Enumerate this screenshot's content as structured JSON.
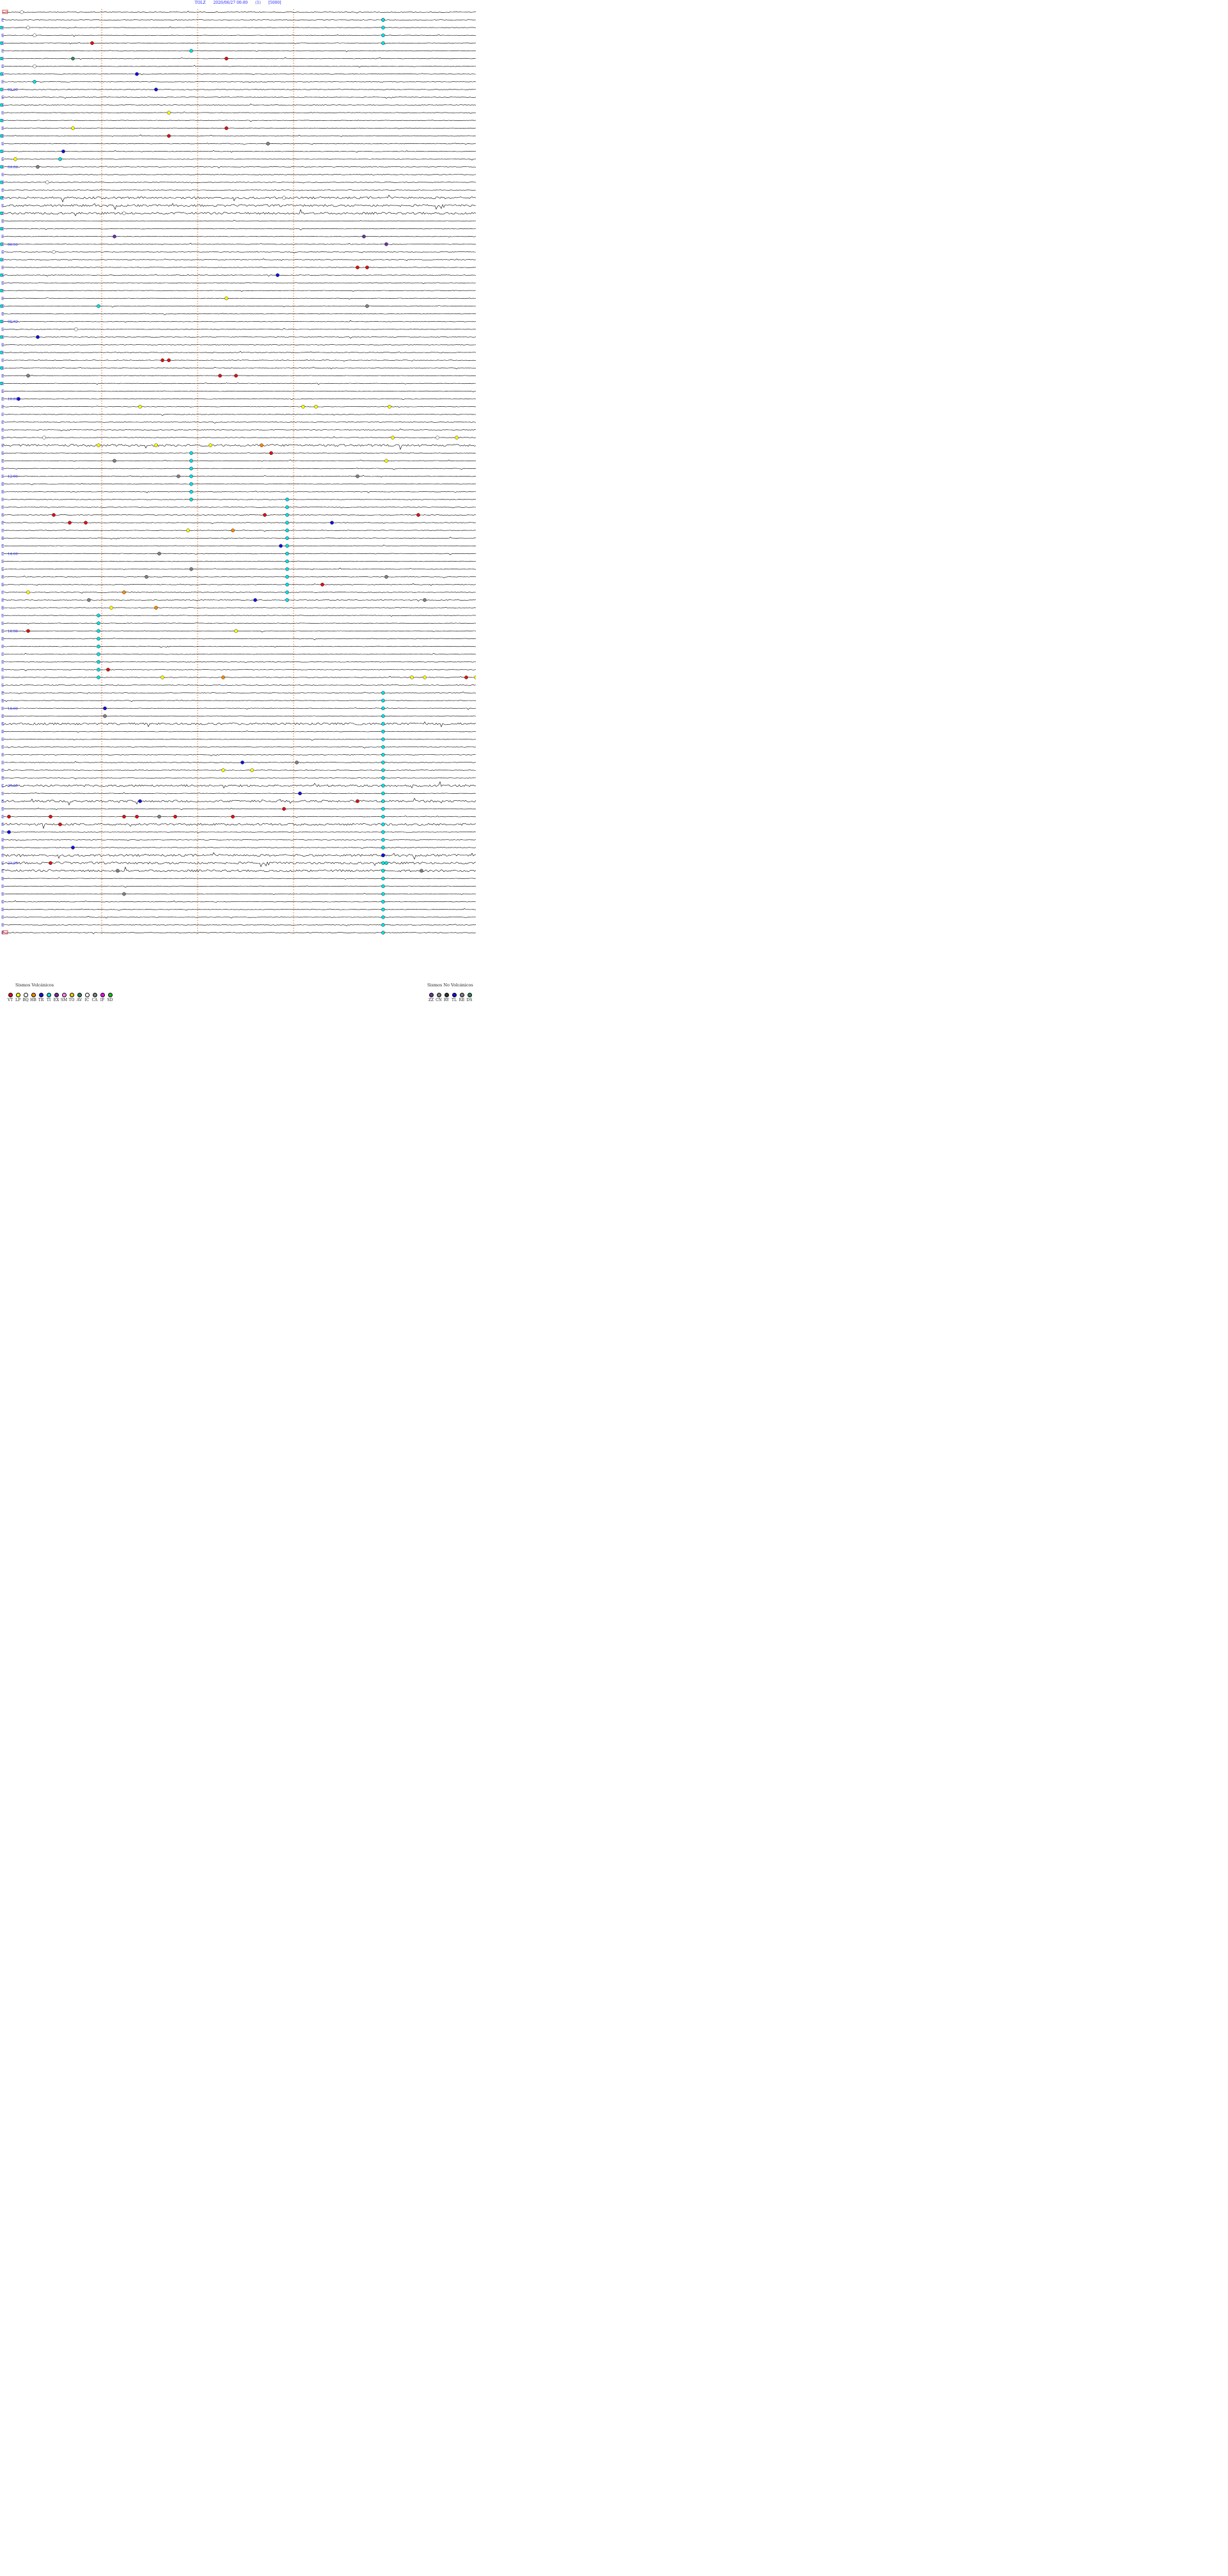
{
  "header": {
    "station": "TOLZ",
    "datetime": "2020/06/27 00:00",
    "index": "(1)",
    "scale": "[5000]"
  },
  "chart_data": {
    "type": "seismogram-helicorder",
    "row_count": 120,
    "hour_labels": [
      "02:00",
      "04:00",
      "06:00",
      "08:00",
      "10:00",
      "12:00",
      "14:00",
      "16:00",
      "18:00",
      "20:00",
      "22:00"
    ],
    "hour_label_rows": [
      10,
      20,
      30,
      40,
      50,
      60,
      70,
      80,
      90,
      100,
      110
    ],
    "marker_rows": [
      1,
      2,
      3,
      4,
      5,
      6,
      7,
      8,
      9,
      10,
      11,
      12,
      13,
      14,
      15,
      16,
      17,
      18,
      19,
      20,
      21,
      22,
      23,
      24,
      25,
      26,
      27,
      28,
      29,
      30,
      31,
      32,
      33,
      34,
      35,
      36,
      37,
      38,
      39,
      40,
      41,
      42,
      43,
      44,
      45,
      46,
      47,
      48,
      49,
      50,
      51,
      52,
      53,
      54,
      55,
      56,
      57,
      58,
      59,
      60,
      61,
      62,
      63,
      64,
      65,
      66,
      67,
      68,
      69,
      70,
      71,
      72,
      73,
      74,
      75,
      76,
      77,
      78,
      79,
      80,
      81,
      82,
      83,
      84,
      85,
      86,
      87,
      88,
      89,
      90,
      91,
      92,
      93,
      94,
      95,
      96,
      97,
      98,
      99,
      100,
      101,
      102,
      103,
      104,
      105,
      106,
      107,
      108,
      109,
      110,
      111,
      112,
      113,
      114,
      115,
      116,
      117,
      118,
      119
    ],
    "minute_marks": [
      15,
      30,
      45
    ],
    "grid_color": "#e07030",
    "trace_color": "#000000",
    "noisy_rows": [
      24,
      25,
      26,
      56,
      92,
      100,
      102,
      105,
      109,
      110,
      111
    ],
    "events": [
      {
        "row": 0,
        "t": 3,
        "c": "IC"
      },
      {
        "row": 1,
        "t": 59.5,
        "c": "TI"
      },
      {
        "row": 2,
        "t": 4,
        "c": "IC"
      },
      {
        "row": 3,
        "t": 5,
        "c": "IC"
      },
      {
        "row": 4,
        "t": 14,
        "c": "VT"
      },
      {
        "row": 5,
        "t": 29.5,
        "c": "TI"
      },
      {
        "row": 6,
        "t": 11,
        "c": "AV"
      },
      {
        "row": 6,
        "t": 35,
        "c": "VT"
      },
      {
        "row": 7,
        "t": 5,
        "c": "IC"
      },
      {
        "row": 8,
        "t": 21,
        "c": "TR"
      },
      {
        "row": 9,
        "t": 5,
        "c": "TI"
      },
      {
        "row": 10,
        "t": 24,
        "c": "TR"
      },
      {
        "row": 13,
        "t": 26,
        "c": "LP"
      },
      {
        "row": 15,
        "t": 11,
        "c": "LP"
      },
      {
        "row": 15,
        "t": 35,
        "c": "VT"
      },
      {
        "row": 16,
        "t": 26,
        "c": "VT"
      },
      {
        "row": 17,
        "t": 41.5,
        "c": "CA"
      },
      {
        "row": 18,
        "t": 9.5,
        "c": "TR"
      },
      {
        "row": 19,
        "t": 2,
        "c": "LP"
      },
      {
        "row": 19,
        "t": 9,
        "c": "TI"
      },
      {
        "row": 20,
        "t": 5.5,
        "c": "CA"
      },
      {
        "row": 22,
        "t": 7,
        "c": "IC"
      },
      {
        "row": 24,
        "t": 44,
        "c": "IC"
      },
      {
        "row": 26,
        "t": 19,
        "c": "IC"
      },
      {
        "row": 29,
        "t": 17.5,
        "c": "EX"
      },
      {
        "row": 29,
        "t": 56.5,
        "c": "EX"
      },
      {
        "row": 30,
        "t": 60,
        "c": "EX"
      },
      {
        "row": 31,
        "t": 8,
        "c": "IC"
      },
      {
        "row": 33,
        "t": 55.5,
        "c": "VT"
      },
      {
        "row": 33,
        "t": 57,
        "c": "VT"
      },
      {
        "row": 34,
        "t": 43,
        "c": "TR"
      },
      {
        "row": 37,
        "t": 35,
        "c": "LP"
      },
      {
        "row": 38,
        "t": 57,
        "c": "CA"
      },
      {
        "row": 38,
        "t": 15,
        "c": "TI"
      },
      {
        "row": 41,
        "t": 11.5,
        "c": "IC"
      },
      {
        "row": 42,
        "t": 5.5,
        "c": "TR"
      },
      {
        "row": 45,
        "t": 25,
        "c": "VT"
      },
      {
        "row": 45,
        "t": 26,
        "c": "VT"
      },
      {
        "row": 47,
        "t": 4,
        "c": "CA"
      },
      {
        "row": 47,
        "t": 34,
        "c": "VT"
      },
      {
        "row": 47,
        "t": 36.5,
        "c": "VT"
      },
      {
        "row": 50,
        "t": 2.5,
        "c": "TR"
      },
      {
        "row": 51,
        "t": 21.5,
        "c": "LP"
      },
      {
        "row": 51,
        "t": 47,
        "c": "LP"
      },
      {
        "row": 51,
        "t": 49,
        "c": "LP"
      },
      {
        "row": 51,
        "t": 60.5,
        "c": "LP"
      },
      {
        "row": 55,
        "t": 6.5,
        "c": "IC"
      },
      {
        "row": 55,
        "t": 61,
        "c": "LP"
      },
      {
        "row": 55,
        "t": 68,
        "c": "IC"
      },
      {
        "row": 55,
        "t": 71,
        "c": "LP"
      },
      {
        "row": 56,
        "t": 15,
        "c": "LP"
      },
      {
        "row": 56,
        "t": 24,
        "c": "LP"
      },
      {
        "row": 56,
        "t": 32.5,
        "c": "LP"
      },
      {
        "row": 56,
        "t": 40.5,
        "c": "HB"
      },
      {
        "row": 57,
        "t": 42,
        "c": "VT"
      },
      {
        "row": 58,
        "t": 17.5,
        "c": "CA"
      },
      {
        "row": 58,
        "t": 60,
        "c": "LP"
      },
      {
        "row": 60,
        "t": 27.5,
        "c": "CA"
      },
      {
        "row": 60,
        "t": 55.5,
        "c": "CA"
      },
      {
        "row": 65,
        "t": 8,
        "c": "VT"
      },
      {
        "row": 65,
        "t": 41,
        "c": "VT"
      },
      {
        "row": 65,
        "t": 65,
        "c": "VT"
      },
      {
        "row": 66,
        "t": 10.5,
        "c": "VT"
      },
      {
        "row": 66,
        "t": 13,
        "c": "VT"
      },
      {
        "row": 66,
        "t": 51.5,
        "c": "TR"
      },
      {
        "row": 67,
        "t": 36,
        "c": "HB"
      },
      {
        "row": 67,
        "t": 29,
        "c": "LP"
      },
      {
        "row": 69,
        "t": 43.5,
        "c": "TR"
      },
      {
        "row": 70,
        "t": 24.5,
        "c": "CA"
      },
      {
        "row": 72,
        "t": 29.5,
        "c": "CA"
      },
      {
        "row": 73,
        "t": 22.5,
        "c": "CA"
      },
      {
        "row": 73,
        "t": 60,
        "c": "CA"
      },
      {
        "row": 74,
        "t": 50,
        "c": "VT"
      },
      {
        "row": 75,
        "t": 4,
        "c": "LP"
      },
      {
        "row": 75,
        "t": 19,
        "c": "HB"
      },
      {
        "row": 76,
        "t": 13.5,
        "c": "CA"
      },
      {
        "row": 76,
        "t": 39.5,
        "c": "TR"
      },
      {
        "row": 76,
        "t": 66,
        "c": "CA"
      },
      {
        "row": 77,
        "t": 17,
        "c": "LP"
      },
      {
        "row": 77,
        "t": 24,
        "c": "HB"
      },
      {
        "row": 80,
        "t": 4,
        "c": "VT"
      },
      {
        "row": 80,
        "t": 36.5,
        "c": "LP"
      },
      {
        "row": 85,
        "t": 16.5,
        "c": "VT"
      },
      {
        "row": 86,
        "t": 25,
        "c": "LP"
      },
      {
        "row": 86,
        "t": 34.5,
        "c": "HB"
      },
      {
        "row": 86,
        "t": 64,
        "c": "LP"
      },
      {
        "row": 86,
        "t": 66,
        "c": "LP"
      },
      {
        "row": 86,
        "t": 74,
        "c": "LP"
      },
      {
        "row": 86,
        "t": 72.5,
        "c": "VT"
      },
      {
        "row": 90,
        "t": 16,
        "c": "TR"
      },
      {
        "row": 91,
        "t": 16,
        "c": "CA"
      },
      {
        "row": 97,
        "t": 37.5,
        "c": "TR"
      },
      {
        "row": 97,
        "t": 46,
        "c": "CA"
      },
      {
        "row": 98,
        "t": 34.5,
        "c": "LP"
      },
      {
        "row": 98,
        "t": 39,
        "c": "LP"
      },
      {
        "row": 101,
        "t": 46.5,
        "c": "TR"
      },
      {
        "row": 102,
        "t": 21.5,
        "c": "TR"
      },
      {
        "row": 102,
        "t": 55.5,
        "c": "VT"
      },
      {
        "row": 103,
        "t": 44,
        "c": "VT"
      },
      {
        "row": 104,
        "t": 1,
        "c": "VT"
      },
      {
        "row": 104,
        "t": 7.5,
        "c": "VT"
      },
      {
        "row": 104,
        "t": 19,
        "c": "VT"
      },
      {
        "row": 104,
        "t": 21,
        "c": "VT"
      },
      {
        "row": 104,
        "t": 24.5,
        "c": "CA"
      },
      {
        "row": 104,
        "t": 27,
        "c": "VT"
      },
      {
        "row": 104,
        "t": 36,
        "c": "VT"
      },
      {
        "row": 105,
        "t": 9,
        "c": "VT"
      },
      {
        "row": 106,
        "t": 1,
        "c": "TR"
      },
      {
        "row": 108,
        "t": 11,
        "c": "TR"
      },
      {
        "row": 109,
        "t": 59.5,
        "c": "TR"
      },
      {
        "row": 110,
        "t": 60,
        "c": "TI"
      },
      {
        "row": 110,
        "t": 7.5,
        "c": "VT"
      },
      {
        "row": 111,
        "t": 18,
        "c": "CA"
      },
      {
        "row": 111,
        "t": 65.5,
        "c": "CA"
      },
      {
        "row": 114,
        "t": 19,
        "c": "CA"
      }
    ],
    "tremor_bars": [
      {
        "t": 59.5,
        "row_start": 1,
        "row_end": 4
      },
      {
        "t": 29.5,
        "row_start": 57,
        "row_end": 63
      },
      {
        "t": 44.5,
        "row_start": 63,
        "row_end": 76
      },
      {
        "t": 15,
        "row_start": 78,
        "row_end": 86
      },
      {
        "t": 59.5,
        "row_start": 88,
        "row_end": 119
      }
    ],
    "legend_volcanic": {
      "title": "Sismos Volcánicos",
      "items": [
        {
          "code": "VT",
          "color": "#e01010"
        },
        {
          "code": "LP",
          "color": "#ffff00"
        },
        {
          "code": "BQ",
          "color": "#ffffff"
        },
        {
          "code": "HB",
          "color": "#ff8800"
        },
        {
          "code": "TR",
          "color": "#1010e0"
        },
        {
          "code": "TI",
          "color": "#00e0e0"
        },
        {
          "code": "EX",
          "color": "#7030a0"
        },
        {
          "code": "SM",
          "color": "#ff88ff"
        },
        {
          "code": "TO",
          "color": "#ffcc00"
        },
        {
          "code": "AV",
          "color": "#2e8b57"
        },
        {
          "code": "IC",
          "color": "#ffffff"
        },
        {
          "code": "CA",
          "color": "#808080"
        },
        {
          "code": "IF",
          "color": "#ff00ff"
        },
        {
          "code": "SD",
          "color": "#20c020"
        }
      ]
    },
    "legend_nonvolcanic": {
      "title": "Sismos No Volcánicos",
      "items": [
        {
          "code": "ZZ",
          "color": "#7030a0"
        },
        {
          "code": "CN",
          "color": "#808080"
        },
        {
          "code": "RY",
          "color": "#303030"
        },
        {
          "code": "TL",
          "color": "#1010e0"
        },
        {
          "code": "RE",
          "color": "#808080"
        },
        {
          "code": "DS",
          "color": "#2e8b57"
        }
      ]
    }
  }
}
